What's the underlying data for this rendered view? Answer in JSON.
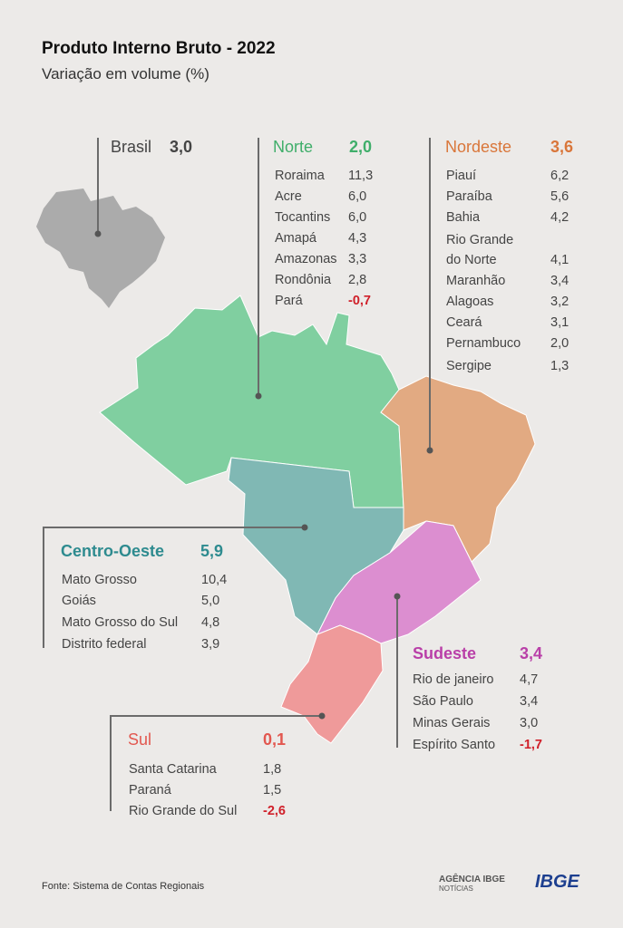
{
  "title": "Produto Interno Bruto - 2022",
  "subtitle": "Variação em volume (%)",
  "colors": {
    "norte": "#80cfa0",
    "nordeste": "#e2aa82",
    "centro_oeste": "#80b8b4",
    "sudeste": "#dc8ed0",
    "sul": "#ef9a9a",
    "brasil": "#ababab",
    "negative": "#d0202a"
  },
  "brasil": {
    "name": "Brasil",
    "value": "3,0"
  },
  "norte": {
    "name": "Norte",
    "value": "2,0",
    "states": [
      {
        "name": "Roraima",
        "value": "11,3"
      },
      {
        "name": "Acre",
        "value": "6,0"
      },
      {
        "name": "Tocantins",
        "value": "6,0"
      },
      {
        "name": "Amapá",
        "value": "4,3"
      },
      {
        "name": "Amazonas",
        "value": "3,3"
      },
      {
        "name": "Rondônia",
        "value": "2,8"
      },
      {
        "name": "Pará",
        "value": "-0,7"
      }
    ]
  },
  "nordeste": {
    "name": "Nordeste",
    "value": "3,6",
    "states": [
      {
        "name": "Piauí",
        "value": "6,2"
      },
      {
        "name": "Paraíba",
        "value": "5,6"
      },
      {
        "name": "Bahia",
        "value": "4,2"
      },
      {
        "name": "Rio Grande",
        "value": ""
      },
      {
        "name": "do Norte",
        "value": "4,1"
      },
      {
        "name": "Maranhão",
        "value": "3,4"
      },
      {
        "name": "Alagoas",
        "value": "3,2"
      },
      {
        "name": "Ceará",
        "value": "3,1"
      },
      {
        "name": "Pernambuco",
        "value": "2,0"
      },
      {
        "name": "Sergipe",
        "value": "1,3"
      }
    ]
  },
  "centro_oeste": {
    "name": "Centro-Oeste",
    "value": "5,9",
    "states": [
      {
        "name": "Mato Grosso",
        "value": "10,4"
      },
      {
        "name": "Goiás",
        "value": "5,0"
      },
      {
        "name": "Mato Grosso do Sul",
        "value": "4,8"
      },
      {
        "name": "Distrito federal",
        "value": "3,9"
      }
    ]
  },
  "sudeste": {
    "name": "Sudeste",
    "value": "3,4",
    "states": [
      {
        "name": "Rio de janeiro",
        "value": "4,7"
      },
      {
        "name": "São Paulo",
        "value": "3,4"
      },
      {
        "name": "Minas Gerais",
        "value": "3,0"
      },
      {
        "name": "Espírito Santo",
        "value": "-1,7"
      }
    ]
  },
  "sul": {
    "name": "Sul",
    "value": "0,1",
    "states": [
      {
        "name": "Santa Catarina",
        "value": "1,8"
      },
      {
        "name": "Paraná",
        "value": "1,5"
      },
      {
        "name": "Rio Grande do Sul",
        "value": "-2,6"
      }
    ]
  },
  "footer": {
    "source": "Fonte: Sistema de Contas Regionais"
  },
  "logos": {
    "agencia": "AGÊNCIA IBGE",
    "agencia_sub": "NOTÍCIAS",
    "ibge": "IBGE"
  }
}
